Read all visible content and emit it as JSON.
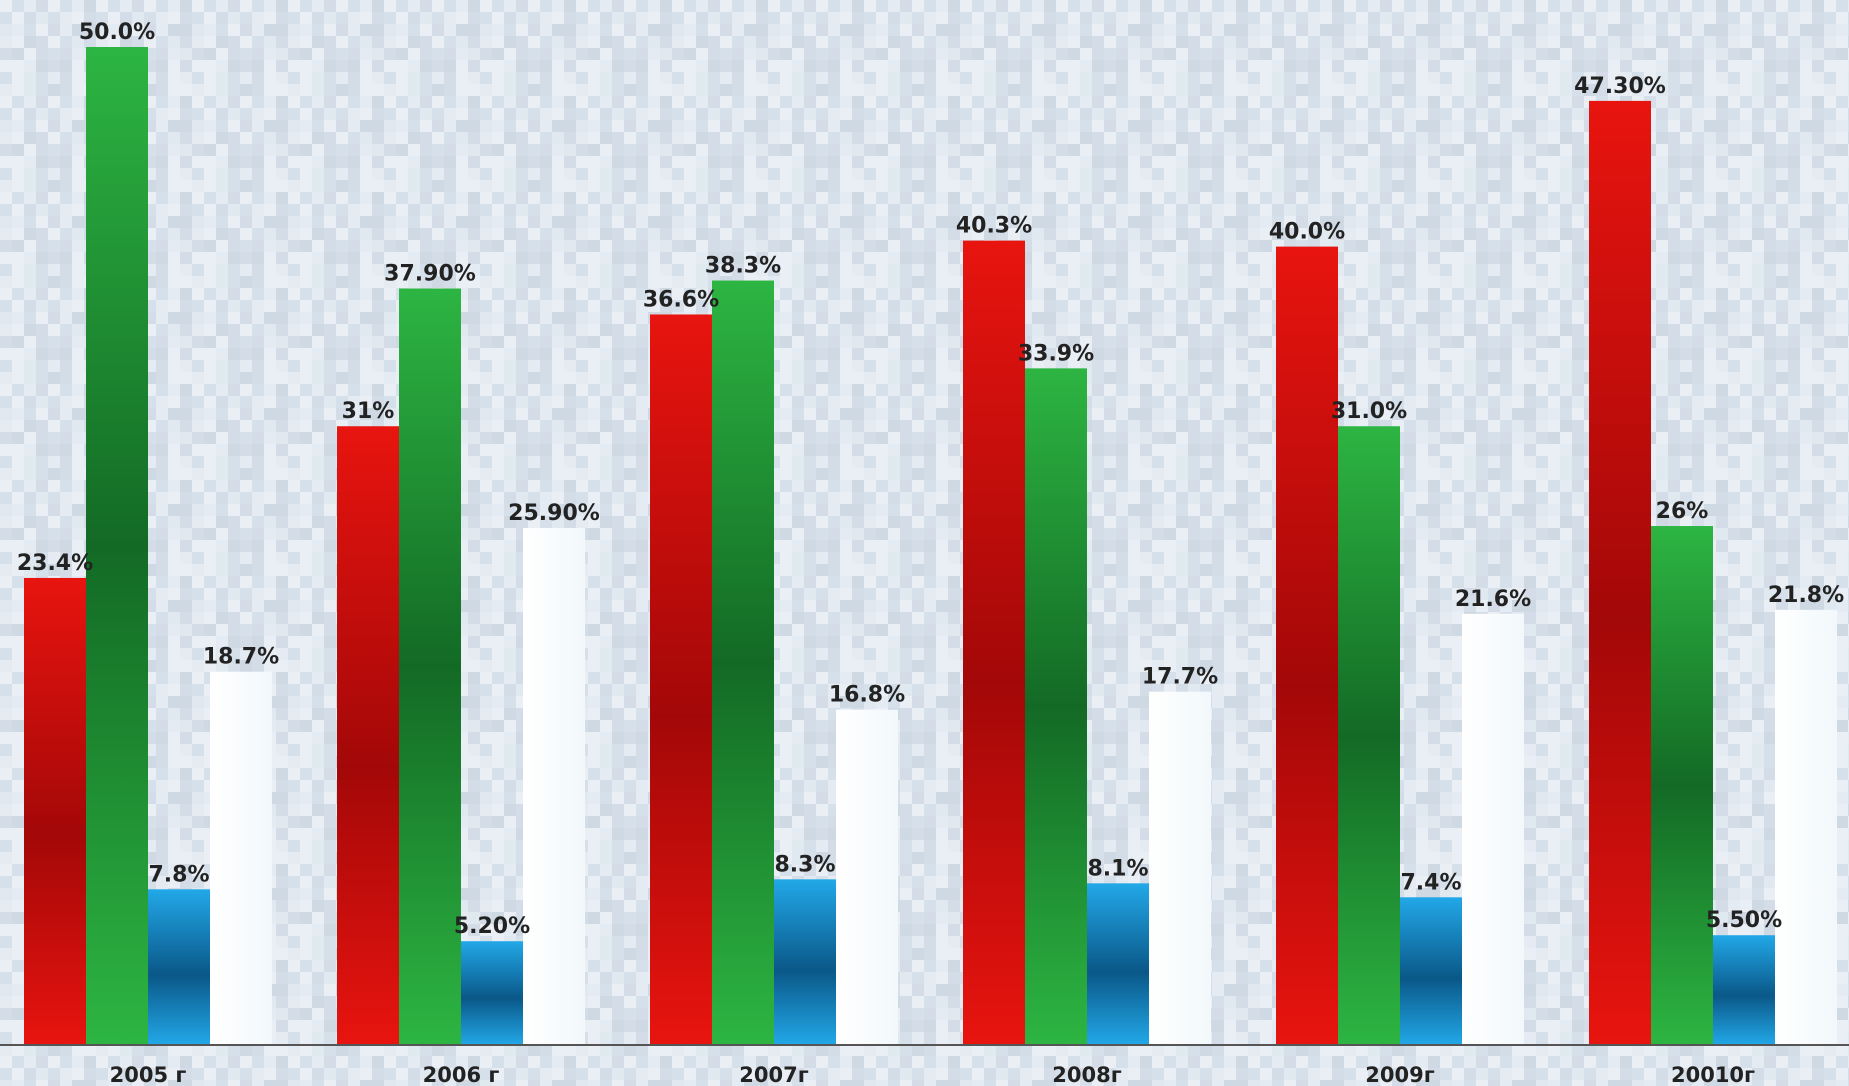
{
  "colors": {
    "red": "#e8140f",
    "red_dark": "#a30808",
    "green": "#2db542",
    "green_dark": "#136a25",
    "blue": "#22a8e8",
    "blue_dark": "#0a5888",
    "white": "#f2f8fb",
    "axis": "#555555"
  },
  "chart_data": {
    "type": "bar",
    "categories": [
      "2005 г",
      "2006 г",
      "2007г",
      "2008г",
      "2009г",
      "20010г"
    ],
    "series": [
      {
        "values": [
          23.4,
          31,
          36.6,
          40.3,
          40.0,
          47.3
        ],
        "labels": [
          "23.4%",
          "31%",
          "36.6%",
          "40.3%",
          "40.0%",
          "47.30%"
        ],
        "color": "red"
      },
      {
        "values": [
          50.0,
          37.9,
          38.3,
          33.9,
          31.0,
          26
        ],
        "labels": [
          "50.0%",
          "37.90%",
          "38.3%",
          "33.9%",
          "31.0%",
          "26%"
        ],
        "color": "green"
      },
      {
        "values": [
          7.8,
          5.2,
          8.3,
          8.1,
          7.4,
          5.5
        ],
        "labels": [
          "7.8%",
          "5.20%",
          "8.3%",
          "8.1%",
          "7.4%",
          "5.50%"
        ],
        "color": "blue"
      },
      {
        "values": [
          18.7,
          25.9,
          16.8,
          17.7,
          21.6,
          21.8
        ],
        "labels": [
          "18.7%",
          "25.90%",
          "16.8%",
          "17.7%",
          "21.6%",
          "21.8%"
        ],
        "color": "white"
      }
    ],
    "ylim": [
      0,
      50
    ],
    "grid": false,
    "legend": "none",
    "title": "",
    "xlabel": "",
    "ylabel": ""
  }
}
